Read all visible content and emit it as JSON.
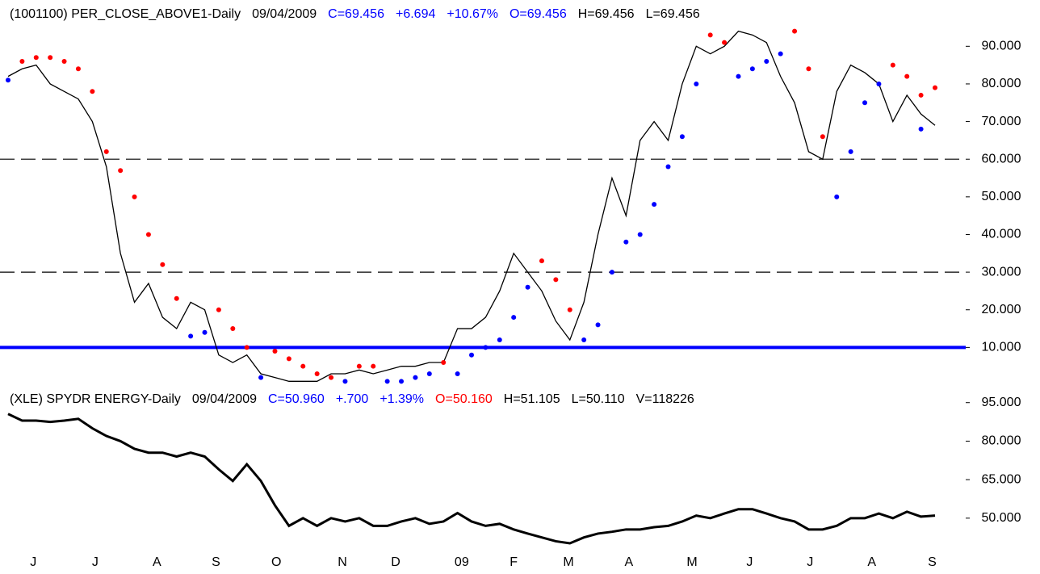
{
  "chart_data": [
    {
      "type": "line",
      "header": [
        {
          "text": "(1001100) PER_CLOSE_ABOVE1-Daily",
          "color": "#000000"
        },
        {
          "text": "09/04/2009",
          "color": "#000000"
        },
        {
          "text": "C=69.456",
          "color": "#0000ff"
        },
        {
          "text": "+6.694",
          "color": "#0000ff"
        },
        {
          "text": "+10.67%",
          "color": "#0000ff"
        },
        {
          "text": "O=69.456",
          "color": "#0000ff"
        },
        {
          "text": "H=69.456",
          "color": "#000000"
        },
        {
          "text": "L=69.456",
          "color": "#000000"
        }
      ],
      "x": [
        0,
        1,
        2,
        3,
        4,
        5,
        6,
        7,
        8,
        9,
        10,
        11,
        12,
        13,
        14,
        15,
        16,
        17,
        18,
        19,
        20,
        21,
        22,
        23,
        24,
        25,
        26,
        27,
        28,
        29,
        30,
        31,
        32,
        33,
        34,
        35,
        36,
        37,
        38,
        39,
        40,
        41,
        42,
        43,
        44,
        45,
        46,
        47,
        48,
        49,
        50,
        51,
        52,
        53,
        54,
        55,
        56,
        57,
        58,
        59,
        60,
        61,
        62,
        63,
        64,
        65,
        66
      ],
      "xlim": [
        0,
        66
      ],
      "ylim": [
        0,
        95
      ],
      "yticks": [
        {
          "value": 90,
          "label": "90.000"
        },
        {
          "value": 80,
          "label": "80.000"
        },
        {
          "value": 70,
          "label": "70.000"
        },
        {
          "value": 60,
          "label": "60.000"
        },
        {
          "value": 50,
          "label": "50.000"
        },
        {
          "value": 40,
          "label": "40.000"
        },
        {
          "value": 30,
          "label": "30.000"
        },
        {
          "value": 20,
          "label": "20.000"
        },
        {
          "value": 10,
          "label": "10.000"
        }
      ],
      "reference_lines": [
        {
          "value": 60,
          "style": "dashed",
          "color": "#000000"
        },
        {
          "value": 30,
          "style": "dashed",
          "color": "#000000"
        },
        {
          "value": 10,
          "style": "solid",
          "color": "#0000ff"
        }
      ],
      "series": [
        {
          "style": "line",
          "color": "#000000",
          "values": [
            82,
            84,
            85,
            80,
            78,
            76,
            70,
            58,
            35,
            22,
            27,
            18,
            15,
            22,
            20,
            8,
            6,
            8,
            3,
            2,
            1,
            1,
            1,
            3,
            3,
            4,
            3,
            4,
            5,
            5,
            6,
            6,
            15,
            15,
            18,
            25,
            35,
            30,
            25,
            17,
            12,
            22,
            40,
            55,
            45,
            65,
            70,
            65,
            80,
            90,
            88,
            90,
            94,
            93,
            91,
            82,
            75,
            62,
            60,
            78,
            85,
            83,
            80,
            70,
            77,
            72,
            69
          ]
        },
        {
          "style": "dots",
          "color": "#ff0000",
          "values": [
            null,
            86,
            87,
            87,
            86,
            84,
            78,
            62,
            57,
            50,
            40,
            32,
            23,
            null,
            null,
            20,
            15,
            10,
            null,
            9,
            7,
            5,
            3,
            2,
            null,
            5,
            5,
            null,
            null,
            null,
            null,
            6,
            null,
            null,
            null,
            null,
            null,
            null,
            33,
            28,
            20,
            null,
            null,
            null,
            null,
            null,
            null,
            null,
            null,
            null,
            93,
            91,
            null,
            null,
            null,
            null,
            94,
            84,
            66,
            null,
            null,
            null,
            null,
            85,
            82,
            77,
            79
          ]
        },
        {
          "style": "dots",
          "color": "#0000ff",
          "values": [
            81,
            null,
            null,
            null,
            null,
            null,
            null,
            null,
            null,
            null,
            null,
            null,
            null,
            13,
            14,
            null,
            null,
            null,
            2,
            null,
            null,
            null,
            null,
            null,
            1,
            null,
            null,
            1,
            1,
            2,
            3,
            null,
            3,
            8,
            10,
            12,
            18,
            26,
            null,
            null,
            null,
            12,
            16,
            30,
            38,
            40,
            48,
            58,
            66,
            80,
            null,
            null,
            82,
            84,
            86,
            88,
            null,
            null,
            null,
            50,
            62,
            75,
            80,
            null,
            null,
            68,
            null
          ]
        }
      ]
    },
    {
      "type": "line",
      "header": [
        {
          "text": "(XLE) SPYDR ENERGY-Daily",
          "color": "#000000"
        },
        {
          "text": "09/04/2009",
          "color": "#000000"
        },
        {
          "text": "C=50.960",
          "color": "#0000ff"
        },
        {
          "text": "+.700",
          "color": "#0000ff"
        },
        {
          "text": "+1.39%",
          "color": "#0000ff"
        },
        {
          "text": "O=50.160",
          "color": "#ff0000"
        },
        {
          "text": "H=51.105",
          "color": "#000000"
        },
        {
          "text": "L=50.110",
          "color": "#000000"
        },
        {
          "text": "V=118226",
          "color": "#000000"
        }
      ],
      "x": [
        0,
        1,
        2,
        3,
        4,
        5,
        6,
        7,
        8,
        9,
        10,
        11,
        12,
        13,
        14,
        15,
        16,
        17,
        18,
        19,
        20,
        21,
        22,
        23,
        24,
        25,
        26,
        27,
        28,
        29,
        30,
        31,
        32,
        33,
        34,
        35,
        36,
        37,
        38,
        39,
        40,
        41,
        42,
        43,
        44,
        45,
        46,
        47,
        48,
        49,
        50,
        51,
        52,
        53,
        54,
        55,
        56,
        57,
        58,
        59,
        60,
        61,
        62,
        63,
        64,
        65,
        66
      ],
      "xlim": [
        0,
        66
      ],
      "xticks": [
        {
          "value": 1.8,
          "label": "J"
        },
        {
          "value": 6.2,
          "label": "J"
        },
        {
          "value": 10.6,
          "label": "A"
        },
        {
          "value": 14.8,
          "label": "S"
        },
        {
          "value": 19.1,
          "label": "O"
        },
        {
          "value": 23.8,
          "label": "N"
        },
        {
          "value": 27.6,
          "label": "D"
        },
        {
          "value": 32.3,
          "label": "09"
        },
        {
          "value": 36.0,
          "label": "F"
        },
        {
          "value": 39.9,
          "label": "M"
        },
        {
          "value": 44.2,
          "label": "A"
        },
        {
          "value": 48.7,
          "label": "M"
        },
        {
          "value": 52.8,
          "label": "J"
        },
        {
          "value": 57.1,
          "label": "J"
        },
        {
          "value": 61.5,
          "label": "A"
        },
        {
          "value": 65.8,
          "label": "S"
        }
      ],
      "ylim": [
        38,
        99
      ],
      "yticks": [
        {
          "value": 95,
          "label": "95.000"
        },
        {
          "value": 80,
          "label": "80.000"
        },
        {
          "value": 65,
          "label": "65.000"
        },
        {
          "value": 50,
          "label": "50.000"
        }
      ],
      "series": [
        {
          "style": "line",
          "color": "#000000",
          "values": [
            90.6,
            88,
            88,
            87.5,
            88,
            88.7,
            85,
            82,
            80,
            77,
            75.5,
            75.5,
            74,
            75.5,
            74,
            69,
            64.5,
            71,
            64.5,
            55,
            47,
            50,
            47,
            50,
            48.7,
            50,
            47,
            47,
            48.7,
            50,
            47.8,
            48.7,
            52,
            48.7,
            47,
            47.8,
            45.6,
            44,
            42.5,
            41,
            40.2,
            42.5,
            44,
            44.7,
            45.6,
            45.6,
            46.5,
            47,
            48.7,
            51,
            50,
            51.8,
            53.5,
            53.5,
            51.8,
            50,
            48.7,
            45.6,
            45.6,
            47,
            50,
            50,
            51.8,
            50,
            52.5,
            50.6,
            51
          ]
        }
      ]
    }
  ]
}
